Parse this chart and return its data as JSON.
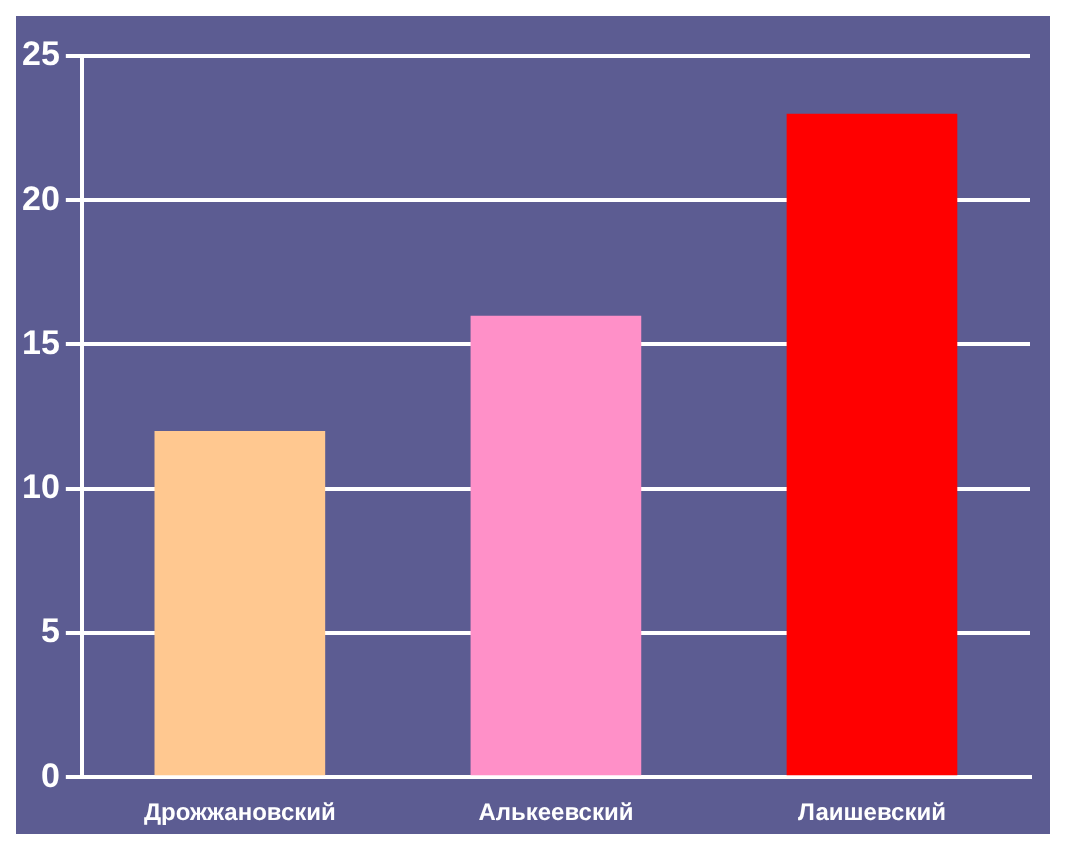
{
  "chart_data": {
    "type": "bar",
    "categories": [
      "Дрожжановский",
      "Алькеевский",
      "Лаишевский"
    ],
    "values": [
      12,
      16,
      23
    ],
    "colors": [
      "#ffc890",
      "#ff90c8",
      "#ff0000"
    ],
    "ylim": [
      0,
      25
    ],
    "yticks": [
      0,
      5,
      10,
      15,
      20,
      25
    ],
    "grid": "y",
    "legend": false
  }
}
